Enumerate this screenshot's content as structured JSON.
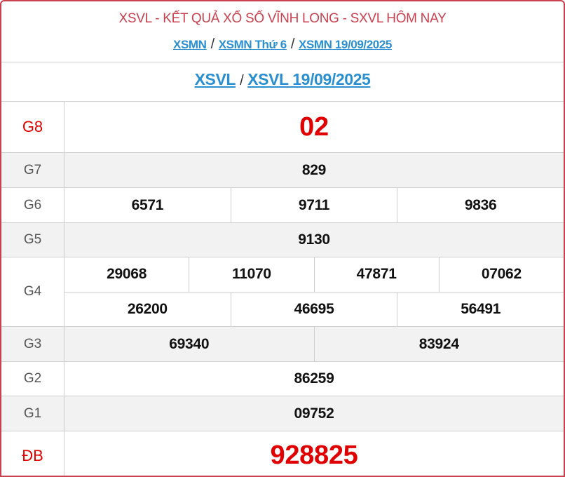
{
  "header": {
    "title": "XSVL - KẾT QUẢ XỔ SỐ VĨNH LONG - SXVL HÔM NAY",
    "breadcrumbs": [
      "XSMN",
      "XSMN Thứ 6",
      "XSMN 19/09/2025"
    ],
    "sub_links": [
      "XSVL",
      "XSVL 19/09/2025"
    ],
    "separator": "/"
  },
  "accent": "#c9414e",
  "link_color": "#2a8fd0",
  "prize_red": "#e00000",
  "prizes": [
    {
      "label": "G8",
      "lines": [
        [
          "02"
        ]
      ]
    },
    {
      "label": "G7",
      "lines": [
        [
          "829"
        ]
      ]
    },
    {
      "label": "G6",
      "lines": [
        [
          "6571",
          "9711",
          "9836"
        ]
      ]
    },
    {
      "label": "G5",
      "lines": [
        [
          "9130"
        ]
      ]
    },
    {
      "label": "G4",
      "lines": [
        [
          "29068",
          "11070",
          "47871",
          "07062"
        ],
        [
          "26200",
          "46695",
          "56491"
        ]
      ]
    },
    {
      "label": "G3",
      "lines": [
        [
          "69340",
          "83924"
        ]
      ]
    },
    {
      "label": "G2",
      "lines": [
        [
          "86259"
        ]
      ]
    },
    {
      "label": "G1",
      "lines": [
        [
          "09752"
        ]
      ]
    },
    {
      "label": "ĐB",
      "lines": [
        [
          "928825"
        ]
      ]
    }
  ]
}
